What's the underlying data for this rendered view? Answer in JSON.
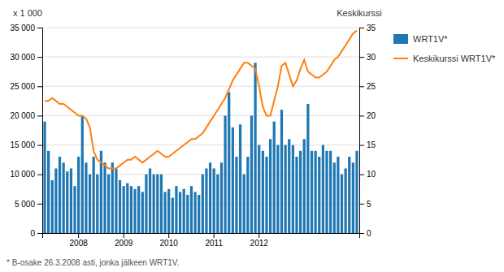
{
  "chart_data": {
    "type": "bar",
    "ylabel": "x 1 000",
    "y2label": "Keskikurssi",
    "footnote": "* B-osake 26.3.2008 asti, jonka jälkeen WRT1V.",
    "categories": [
      null,
      null,
      null,
      null,
      null,
      null,
      null,
      null,
      null,
      "2008",
      null,
      null,
      null,
      null,
      null,
      null,
      null,
      null,
      null,
      null,
      null,
      "2009",
      null,
      null,
      null,
      null,
      null,
      null,
      null,
      null,
      null,
      null,
      null,
      "2010",
      null,
      null,
      null,
      null,
      null,
      null,
      null,
      null,
      null,
      null,
      null,
      "2011",
      null,
      null,
      null,
      null,
      null,
      null,
      null,
      null,
      null,
      null,
      null,
      "2012",
      null,
      null,
      null,
      null,
      null,
      null,
      null,
      null,
      null,
      null,
      null,
      null,
      null,
      null,
      null,
      null,
      null,
      null,
      null,
      null,
      null,
      null,
      null,
      null,
      null,
      null
    ],
    "series": [
      {
        "name": "WRT1V*",
        "type": "bar",
        "values": [
          19000,
          14000,
          9000,
          11000,
          13000,
          12000,
          10500,
          11000,
          8000,
          13000,
          20000,
          12000,
          10000,
          13000,
          10000,
          14000,
          12000,
          10000,
          12000,
          11000,
          9000,
          8000,
          8500,
          8000,
          7500,
          8000,
          7000,
          10000,
          11000,
          10000,
          10000,
          10000,
          7000,
          7500,
          6000,
          8000,
          7000,
          7500,
          6500,
          8000,
          7000,
          6500,
          10000,
          11000,
          12000,
          11000,
          10000,
          12000,
          20000,
          24000,
          18000,
          13000,
          18500,
          10000,
          13000,
          20000,
          29000,
          15000,
          14000,
          13000,
          16000,
          19000,
          15000,
          21000,
          15000,
          16000,
          15000,
          13000,
          14000,
          16000,
          22000,
          14000,
          14000,
          13000,
          15000,
          14000,
          14000,
          12000,
          13000,
          10000,
          11000,
          13000,
          12000,
          14000
        ]
      },
      {
        "name": "Keskikurssi WRT1V*",
        "type": "line",
        "axis": "y2",
        "values": [
          22.5,
          22.5,
          23.0,
          22.5,
          22.0,
          22.0,
          21.5,
          21.0,
          20.5,
          20.0,
          20.0,
          19.5,
          18.0,
          14.0,
          12.5,
          12.0,
          11.5,
          11.0,
          11.0,
          11.0,
          11.5,
          12.0,
          12.5,
          12.5,
          13.0,
          12.5,
          12.0,
          12.5,
          13.0,
          13.5,
          14.0,
          13.5,
          13.0,
          13.0,
          13.5,
          14.0,
          14.5,
          15.0,
          15.5,
          16.0,
          16.0,
          16.5,
          17.0,
          18.0,
          19.0,
          20.0,
          21.0,
          22.0,
          23.0,
          24.5,
          26.0,
          27.0,
          28.0,
          29.0,
          29.0,
          28.5,
          28.0,
          25.0,
          21.5,
          20.0,
          20.0,
          22.5,
          25.0,
          28.5,
          29.0,
          27.0,
          25.0,
          26.0,
          28.0,
          29.5,
          27.5,
          27.0,
          26.5,
          26.5,
          27.0,
          27.5,
          28.5,
          29.5,
          30.0,
          31.0,
          32.0,
          33.0,
          34.0,
          34.5
        ]
      }
    ],
    "ylim": [
      0,
      35000
    ],
    "yticks": [
      0,
      {
        "value": 5000,
        "label": "5 000"
      },
      {
        "value": 10000,
        "label": "10 000"
      },
      {
        "value": 15000,
        "label": "15 000"
      },
      {
        "value": 20000,
        "label": "20 000"
      },
      {
        "value": 25000,
        "label": "25 000"
      },
      {
        "value": 30000,
        "label": "30 000"
      },
      {
        "value": 35000,
        "label": "35 000"
      }
    ],
    "y2lim": [
      0,
      35
    ],
    "y2ticks": [
      0,
      5,
      10,
      15,
      20,
      25,
      30,
      35
    ],
    "grid": true,
    "legend": "right"
  }
}
